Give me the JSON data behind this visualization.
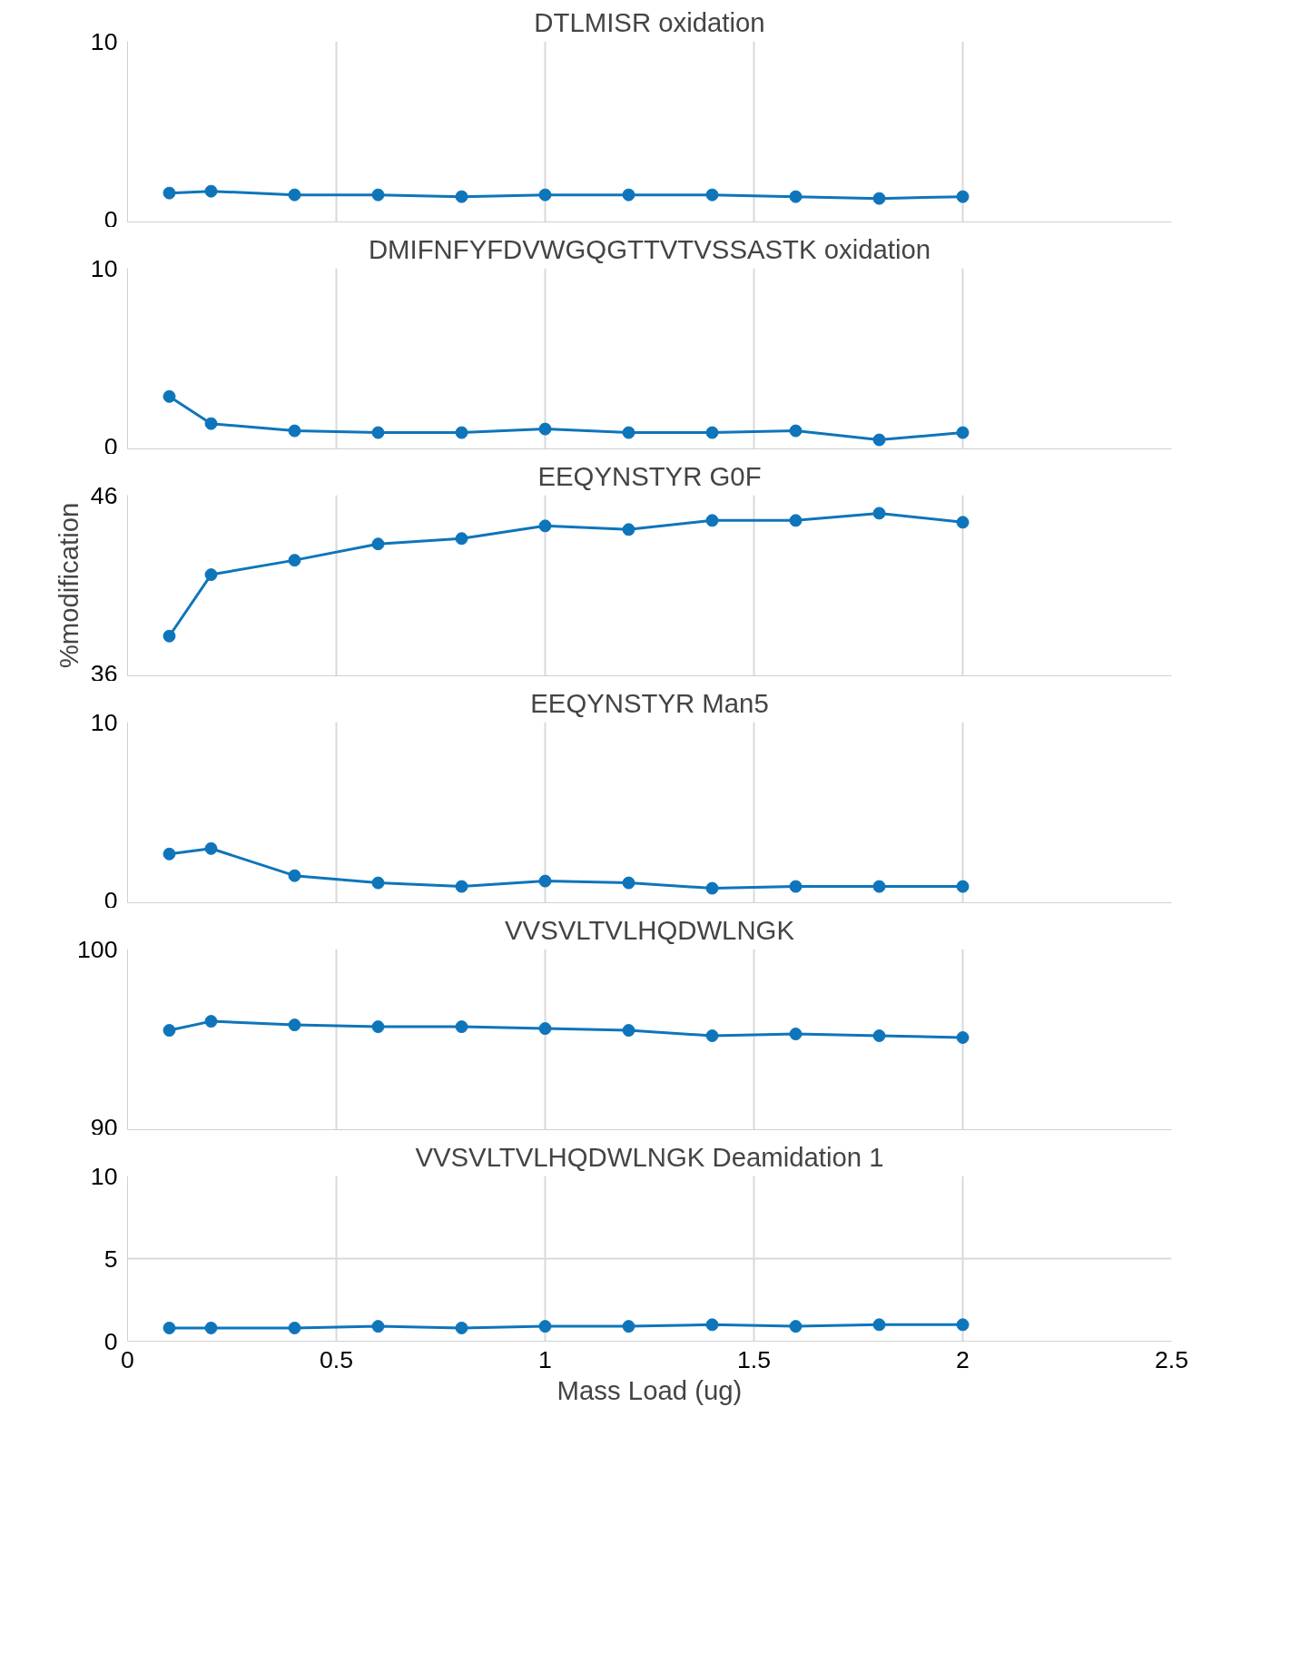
{
  "chart_data": [
    {
      "type": "line",
      "title": "DTLMISR oxidation",
      "x": [
        0.1,
        0.2,
        0.4,
        0.6,
        0.8,
        1.0,
        1.2,
        1.4,
        1.6,
        1.8,
        2.0
      ],
      "series": [
        {
          "color": "#0e75bb",
          "values": [
            1.6,
            1.7,
            1.5,
            1.5,
            1.4,
            1.5,
            1.5,
            1.5,
            1.4,
            1.3,
            1.4
          ]
        }
      ],
      "xlim": [
        0,
        2.5
      ],
      "xticks": [
        0,
        0.5,
        1,
        1.5,
        2,
        2.5
      ],
      "ylim": [
        0,
        10
      ],
      "yticks": [
        0,
        10
      ],
      "grid": true,
      "marker": "circle",
      "line_style": "solid",
      "tick_labels": "y"
    },
    {
      "type": "line",
      "title": "DMIFNFYFDVWGQGTTVTVSSASTK oxidation",
      "x": [
        0.1,
        0.2,
        0.4,
        0.6,
        0.8,
        1.0,
        1.2,
        1.4,
        1.6,
        1.8,
        2.0
      ],
      "series": [
        {
          "color": "#0e75bb",
          "values": [
            2.9,
            1.4,
            1.0,
            0.9,
            0.9,
            1.1,
            0.9,
            0.9,
            1.0,
            0.5,
            0.9
          ]
        }
      ],
      "xlim": [
        0,
        2.5
      ],
      "xticks": [
        0,
        0.5,
        1,
        1.5,
        2,
        2.5
      ],
      "ylim": [
        0,
        10
      ],
      "yticks": [
        0,
        10
      ],
      "grid": true,
      "marker": "circle",
      "line_style": "solid",
      "tick_labels": "y"
    },
    {
      "type": "line",
      "title": "EEQYNSTYR G0F",
      "ylabel": "%modification",
      "x": [
        0.1,
        0.2,
        0.4,
        0.6,
        0.8,
        1.0,
        1.2,
        1.4,
        1.6,
        1.8,
        2.0
      ],
      "series": [
        {
          "color": "#0e75bb",
          "values": [
            38.2,
            41.6,
            42.4,
            43.3,
            43.6,
            44.3,
            44.1,
            44.6,
            44.6,
            45.0,
            44.5
          ]
        }
      ],
      "xlim": [
        0,
        2.5
      ],
      "xticks": [
        0,
        0.5,
        1,
        1.5,
        2,
        2.5
      ],
      "ylim": [
        36,
        46
      ],
      "yticks": [
        36,
        46
      ],
      "grid": true,
      "marker": "circle",
      "line_style": "solid",
      "tick_labels": "y"
    },
    {
      "type": "line",
      "title": "EEQYNSTYR Man5",
      "x": [
        0.1,
        0.2,
        0.4,
        0.6,
        0.8,
        1.0,
        1.2,
        1.4,
        1.6,
        1.8,
        2.0
      ],
      "series": [
        {
          "color": "#0e75bb",
          "values": [
            2.7,
            3.0,
            1.5,
            1.1,
            0.9,
            1.2,
            1.1,
            0.8,
            0.9,
            0.9,
            0.9
          ]
        }
      ],
      "xlim": [
        0,
        2.5
      ],
      "xticks": [
        0,
        0.5,
        1,
        1.5,
        2,
        2.5
      ],
      "ylim": [
        0,
        10
      ],
      "yticks": [
        0,
        10
      ],
      "grid": true,
      "marker": "circle",
      "line_style": "solid",
      "tick_labels": "y"
    },
    {
      "type": "line",
      "title": "VVSVLTVLHQDWLNGK",
      "x": [
        0.1,
        0.2,
        0.4,
        0.6,
        0.8,
        1.0,
        1.2,
        1.4,
        1.6,
        1.8,
        2.0
      ],
      "series": [
        {
          "color": "#0e75bb",
          "values": [
            95.5,
            96.0,
            95.8,
            95.7,
            95.7,
            95.6,
            95.5,
            95.2,
            95.3,
            95.2,
            95.1
          ]
        }
      ],
      "xlim": [
        0,
        2.5
      ],
      "xticks": [
        0,
        0.5,
        1,
        1.5,
        2,
        2.5
      ],
      "ylim": [
        90,
        100
      ],
      "yticks": [
        90,
        100
      ],
      "grid": true,
      "marker": "circle",
      "line_style": "solid",
      "tick_labels": "y"
    },
    {
      "type": "line",
      "title": "VVSVLTVLHQDWLNGK Deamidation 1",
      "xlabel": "Mass Load (ug)",
      "x": [
        0.1,
        0.2,
        0.4,
        0.6,
        0.8,
        1.0,
        1.2,
        1.4,
        1.6,
        1.8,
        2.0
      ],
      "series": [
        {
          "color": "#0e75bb",
          "values": [
            0.8,
            0.8,
            0.8,
            0.9,
            0.8,
            0.9,
            0.9,
            1.0,
            0.9,
            1.0,
            1.0
          ]
        }
      ],
      "xlim": [
        0,
        2.5
      ],
      "xticks": [
        0,
        0.5,
        1,
        1.5,
        2,
        2.5
      ],
      "ylim": [
        0,
        10
      ],
      "yticks": [
        0,
        5,
        10
      ],
      "grid": true,
      "marker": "circle",
      "line_style": "solid"
    }
  ]
}
